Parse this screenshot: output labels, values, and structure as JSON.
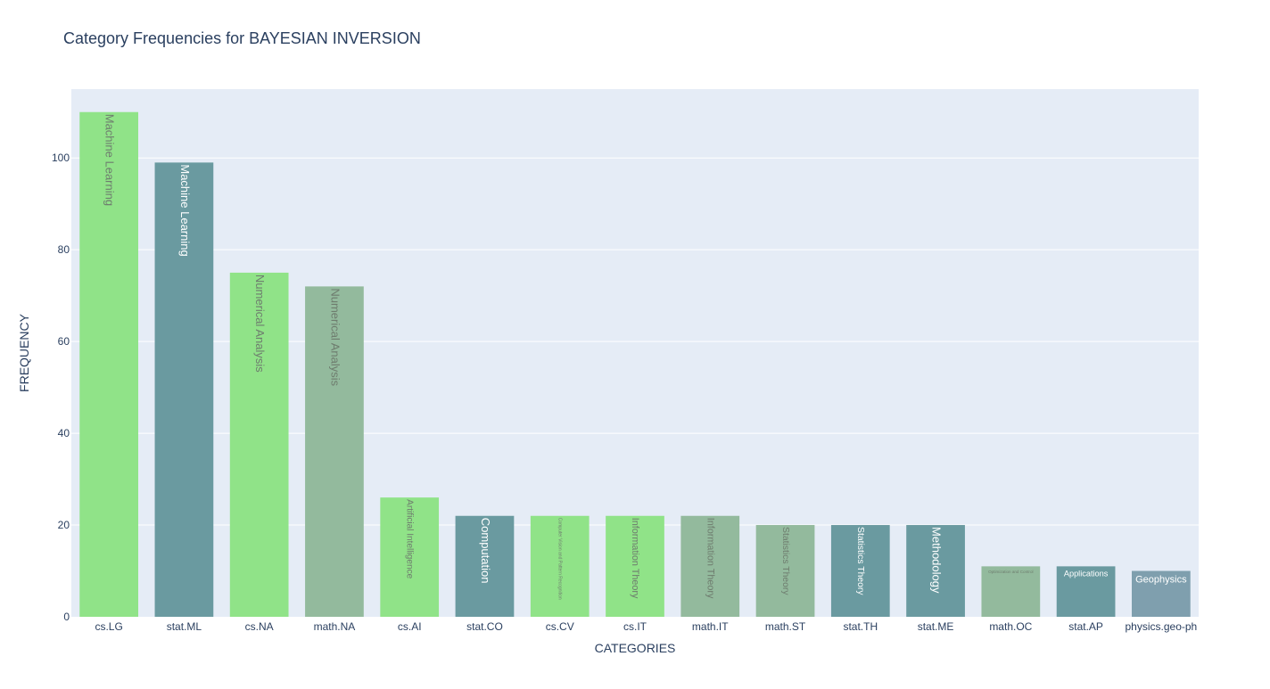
{
  "chart_data": {
    "type": "bar",
    "title": "Category Frequencies for BAYESIAN INVERSION",
    "xlabel": "CATEGORIES",
    "ylabel": "FREQUENCY",
    "ylim": [
      0,
      115
    ],
    "yticks": [
      0,
      20,
      40,
      60,
      80,
      100
    ],
    "grid": true,
    "categories": [
      "cs.LG",
      "stat.ML",
      "cs.NA",
      "math.NA",
      "cs.AI",
      "stat.CO",
      "cs.CV",
      "cs.IT",
      "math.IT",
      "math.ST",
      "stat.TH",
      "stat.ME",
      "math.OC",
      "stat.AP",
      "physics.geo-ph"
    ],
    "values": [
      110,
      99,
      75,
      72,
      26,
      22,
      22,
      22,
      22,
      20,
      20,
      20,
      11,
      11,
      10
    ],
    "bar_labels": [
      "Machine Learning",
      "Machine Learning",
      "Numerical Analysis",
      "Numerical Analysis",
      "Artificial Intelligence",
      "Computation",
      "Computer Vision and Pattern Recognition",
      "Information Theory",
      "Information Theory",
      "Statistics Theory",
      "Statistics Theory",
      "Methodology",
      "Optimization and Control",
      "Applications",
      "Geophysics"
    ],
    "bar_colors": [
      "#90e388",
      "#6a9aa0",
      "#90e388",
      "#93ba9d",
      "#90e388",
      "#6a9aa0",
      "#90e388",
      "#90e388",
      "#93ba9d",
      "#93ba9d",
      "#6a9aa0",
      "#6a9aa0",
      "#93ba9d",
      "#6a9aa0",
      "#7f9fae"
    ],
    "label_colors": [
      "#6e7c6e",
      "#ffffff",
      "#6e7c6e",
      "#6e7c6e",
      "#6e7c6e",
      "#ffffff",
      "#6e7c6e",
      "#6e7c6e",
      "#6e7c6e",
      "#6e7c6e",
      "#ffffff",
      "#ffffff",
      "#6e7c6e",
      "#ffffff",
      "#ffffff"
    ],
    "label_orientation": [
      "vertical",
      "vertical",
      "vertical",
      "vertical",
      "vertical",
      "vertical",
      "vertical",
      "vertical",
      "vertical",
      "vertical",
      "vertical",
      "vertical",
      "horizontal",
      "horizontal",
      "horizontal"
    ],
    "plot_background": "#e5ecf6",
    "text_color": "#2a3f5f"
  }
}
